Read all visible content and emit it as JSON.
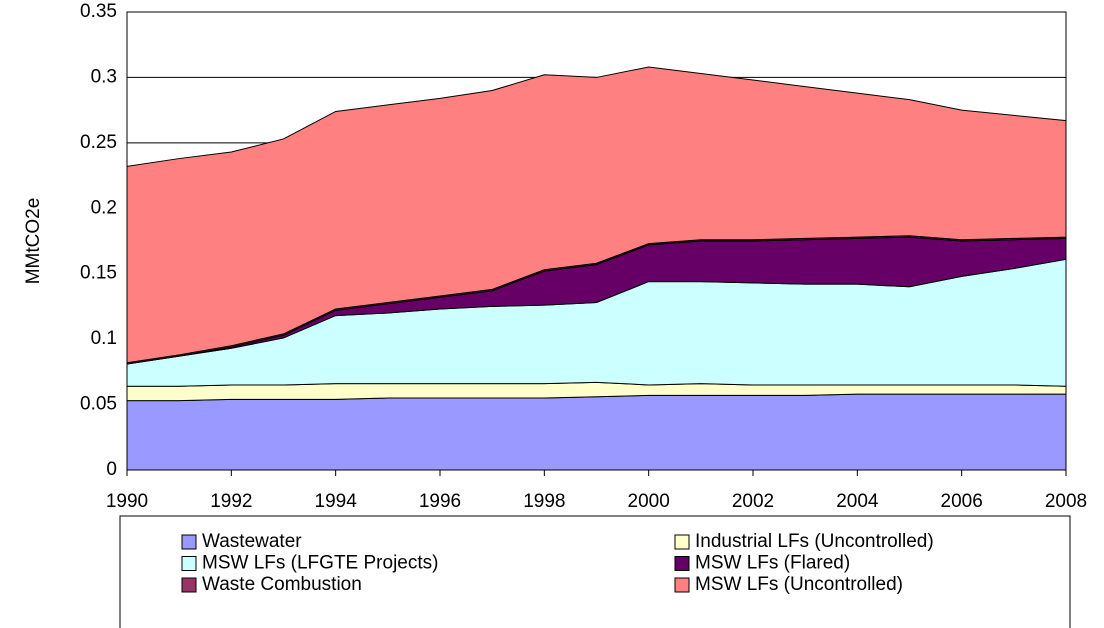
{
  "chart_data": {
    "type": "stacked-area",
    "y_label": "MMtCO2e",
    "x": [
      1990,
      1991,
      1992,
      1993,
      1994,
      1995,
      1996,
      1997,
      1998,
      1999,
      2000,
      2001,
      2002,
      2003,
      2004,
      2005,
      2006,
      2007,
      2008
    ],
    "xlim": [
      1990,
      2008
    ],
    "xticks": [
      1990,
      1992,
      1994,
      1996,
      1998,
      2000,
      2002,
      2004,
      2006,
      2008
    ],
    "ylim": [
      0,
      0.35
    ],
    "yticks": [
      0,
      0.05,
      0.1,
      0.15,
      0.2,
      0.25,
      0.3,
      0.35
    ],
    "grid": true,
    "legend": "bottom",
    "series": [
      {
        "name": "Wastewater",
        "color": "#9999ff",
        "values": [
          0.053,
          0.053,
          0.054,
          0.054,
          0.054,
          0.055,
          0.055,
          0.055,
          0.055,
          0.056,
          0.057,
          0.057,
          0.057,
          0.057,
          0.058,
          0.058,
          0.058,
          0.058,
          0.058
        ]
      },
      {
        "name": "Industrial LFs (Uncontrolled)",
        "color": "#ffffcc",
        "values": [
          0.011,
          0.011,
          0.011,
          0.011,
          0.012,
          0.011,
          0.011,
          0.011,
          0.011,
          0.011,
          0.008,
          0.009,
          0.008,
          0.008,
          0.007,
          0.007,
          0.007,
          0.007,
          0.006
        ]
      },
      {
        "name": "MSW LFs (LFGTE Projects)",
        "color": "#ccffff",
        "values": [
          0.017,
          0.023,
          0.028,
          0.036,
          0.052,
          0.054,
          0.057,
          0.059,
          0.06,
          0.061,
          0.079,
          0.078,
          0.078,
          0.077,
          0.077,
          0.075,
          0.083,
          0.089,
          0.097
        ]
      },
      {
        "name": "MSW LFs (Flared)",
        "color": "#660066",
        "values": [
          0,
          0,
          0.001,
          0.002,
          0.004,
          0.007,
          0.009,
          0.012,
          0.026,
          0.029,
          0.028,
          0.031,
          0.032,
          0.034,
          0.035,
          0.038,
          0.027,
          0.022,
          0.016
        ]
      },
      {
        "name": "Waste Combustion",
        "color": "#993366",
        "values": [
          0.001,
          0.001,
          0.001,
          0.001,
          0.001,
          0.001,
          0.001,
          0.001,
          0.001,
          0.001,
          0.001,
          0.001,
          0.001,
          0.001,
          0.001,
          0.001,
          0.001,
          0.001,
          0.001
        ]
      },
      {
        "name": "MSW LFs (Uncontrolled)",
        "color": "#ff8080",
        "values": [
          0.15,
          0.15,
          0.148,
          0.149,
          0.151,
          0.151,
          0.151,
          0.152,
          0.149,
          0.142,
          0.135,
          0.127,
          0.122,
          0.116,
          0.11,
          0.104,
          0.099,
          0.094,
          0.089
        ]
      }
    ]
  }
}
